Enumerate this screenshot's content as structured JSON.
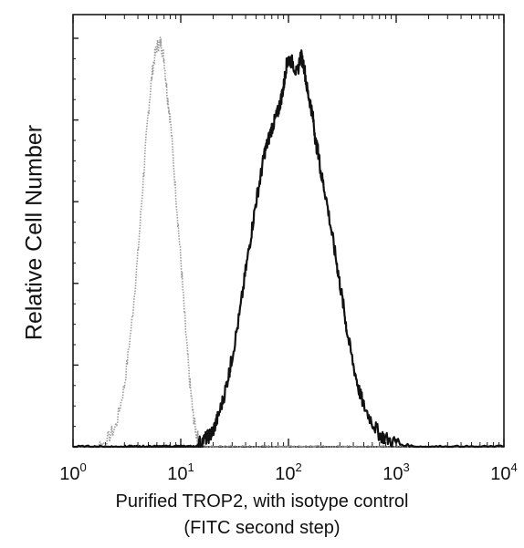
{
  "chart_data": {
    "type": "line",
    "xlabel_line1": "Purified TROP2, with isotype control",
    "xlabel_line2": "(FITC second step)",
    "ylabel": "Relative Cell Number",
    "x_scale": "log",
    "xlim": [
      1,
      10000
    ],
    "ylim": [
      0,
      1
    ],
    "x_ticks": [
      {
        "base": "10",
        "exp": "0"
      },
      {
        "base": "10",
        "exp": "1"
      },
      {
        "base": "10",
        "exp": "2"
      },
      {
        "base": "10",
        "exp": "3"
      },
      {
        "base": "10",
        "exp": "4"
      }
    ],
    "x": [
      1,
      1.5,
      2,
      2.5,
      3,
      3.5,
      4,
      4.5,
      5,
      5.5,
      6,
      6.5,
      7,
      7.5,
      8,
      9,
      10,
      11,
      12,
      13,
      14,
      15,
      17,
      19,
      20,
      22,
      25,
      28,
      30,
      35,
      40,
      45,
      50,
      55,
      60,
      65,
      70,
      75,
      80,
      85,
      90,
      95,
      100,
      110,
      120,
      130,
      140,
      150,
      160,
      170,
      180,
      190,
      200,
      220,
      250,
      280,
      300,
      330,
      350,
      400,
      450,
      500,
      600,
      700,
      800,
      1000,
      1500,
      2000,
      3000,
      5000,
      10000
    ],
    "series": [
      {
        "style": "dotted",
        "color": "#9a9a9a",
        "values": [
          0,
          0,
          0.01,
          0.05,
          0.15,
          0.3,
          0.47,
          0.66,
          0.82,
          0.93,
          0.98,
          0.99,
          0.95,
          0.86,
          0.8,
          0.62,
          0.46,
          0.3,
          0.17,
          0.08,
          0.03,
          0.01,
          0,
          0,
          0,
          0,
          0,
          0,
          0,
          0,
          0,
          0,
          0,
          0,
          0,
          0,
          0,
          0,
          0,
          0,
          0,
          0,
          0,
          0,
          0,
          0,
          0,
          0,
          0,
          0,
          0,
          0,
          0,
          0,
          0,
          0,
          0,
          0,
          0,
          0,
          0,
          0,
          0,
          0,
          0,
          0,
          0,
          0,
          0,
          0,
          0
        ]
      },
      {
        "style": "solid",
        "color": "#111111",
        "values": [
          0,
          0,
          0,
          0,
          0,
          0,
          0,
          0,
          0,
          0,
          0,
          0,
          0,
          0,
          0,
          0,
          0,
          0,
          0,
          0,
          0,
          0.01,
          0.02,
          0.03,
          0.04,
          0.07,
          0.12,
          0.18,
          0.22,
          0.32,
          0.43,
          0.52,
          0.6,
          0.66,
          0.72,
          0.75,
          0.78,
          0.8,
          0.82,
          0.85,
          0.88,
          0.93,
          0.95,
          0.94,
          0.91,
          0.96,
          0.93,
          0.87,
          0.84,
          0.8,
          0.74,
          0.72,
          0.67,
          0.62,
          0.53,
          0.45,
          0.4,
          0.33,
          0.28,
          0.2,
          0.14,
          0.1,
          0.06,
          0.03,
          0.02,
          0.01,
          0,
          0,
          0,
          0,
          0
        ]
      }
    ]
  }
}
